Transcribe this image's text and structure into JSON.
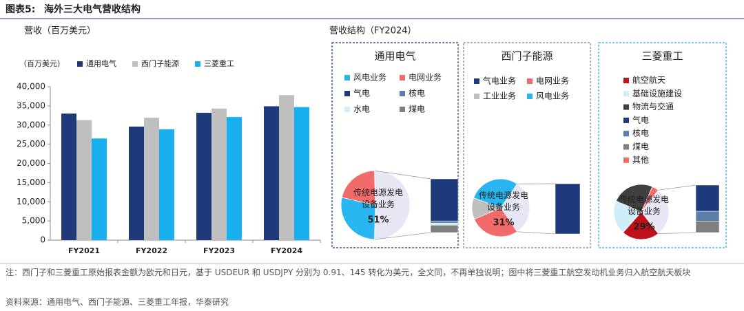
{
  "header": {
    "label": "图表5:",
    "title": "海外三大电气营收结构"
  },
  "section_title": "营收结构（FY2024）",
  "chart_data": [
    {
      "type": "bar",
      "title": "营收（百万美元）",
      "legend_unit": "（百万美元）",
      "legend": "top-left",
      "categories": [
        "FY2021",
        "FY2022",
        "FY2023",
        "FY2024"
      ],
      "series": [
        {
          "name": "通用电气",
          "color": "#1f3a7a",
          "values": [
            33000,
            29600,
            33200,
            34900
          ]
        },
        {
          "name": "西门子能源",
          "color": "#bfbfbf",
          "values": [
            31300,
            31900,
            34300,
            37800
          ]
        },
        {
          "name": "三菱重工",
          "color": "#1ab0f0",
          "values": [
            26500,
            28900,
            32100,
            34700
          ]
        }
      ],
      "ylim": [
        0,
        40000
      ],
      "yticks": [
        0,
        {
          "value": 5000,
          "label": "5,000"
        },
        {
          "value": 10000,
          "label": "10,000"
        },
        {
          "value": 15000,
          "label": "15,000"
        },
        {
          "value": 20000,
          "label": "20,000"
        },
        {
          "value": 25000,
          "label": "25,000"
        },
        {
          "value": 30000,
          "label": "30,000"
        },
        {
          "value": 35000,
          "label": "35,000"
        },
        {
          "value": 40000,
          "label": "40,000"
        }
      ]
    },
    {
      "type": "pie-of-bar",
      "title": "通用电气",
      "border_color": "#1f3a7a",
      "segments": [
        {
          "name": "风电业务",
          "color": "#29b6f0",
          "value": 28,
          "in": "pie"
        },
        {
          "name": "电网业务",
          "color": "#f26b6b",
          "value": 21,
          "in": "pie"
        },
        {
          "name": "气电",
          "color": "#1f3a7a",
          "value": 40,
          "in": "bar"
        },
        {
          "name": "核电",
          "color": "#5b7fa8",
          "value": 2,
          "in": "bar"
        },
        {
          "name": "水电",
          "color": "#cfeefa",
          "value": 2,
          "in": "bar"
        },
        {
          "name": "煤电",
          "color": "#7f7f7f",
          "value": 7,
          "in": "bar"
        }
      ],
      "detail": {
        "name": "传统电源发电设备业务",
        "value": 51,
        "value_label": "51%",
        "color": "#e6e6f5"
      }
    },
    {
      "type": "pie-of-bar",
      "title": "西门子能源",
      "border_color": "#808080",
      "segments": [
        {
          "name": "气电业务",
          "color": "#1f3a7a",
          "value": 31,
          "in": "bar"
        },
        {
          "name": "电网业务",
          "color": "#f26b6b",
          "value": 28,
          "in": "pie"
        },
        {
          "name": "工业业务",
          "color": "#bfbfbf",
          "value": 12,
          "in": "pie"
        },
        {
          "name": "风电业务",
          "color": "#29b6f0",
          "value": 29,
          "in": "pie"
        }
      ],
      "detail": {
        "name": "传统电源发电设备业务",
        "value": 31,
        "value_label": "31%",
        "color": "#e6e6f5"
      }
    },
    {
      "type": "pie-of-bar",
      "title": "三菱重工",
      "border_color": "#1ab0d8",
      "segments": [
        {
          "name": "航空航天",
          "color": "#c0101a",
          "value": 22,
          "in": "pie"
        },
        {
          "name": "基础设施建设",
          "color": "#cfeefa",
          "value": 20,
          "in": "pie"
        },
        {
          "name": "物流与交通",
          "color": "#404040",
          "value": 25,
          "in": "pie"
        },
        {
          "name": "气电",
          "color": "#1f3a7a",
          "value": 16,
          "in": "bar"
        },
        {
          "name": "核电",
          "color": "#5b7fa8",
          "value": 6,
          "in": "bar"
        },
        {
          "name": "煤电",
          "color": "#7f7f7f",
          "value": 7,
          "in": "bar"
        },
        {
          "name": "其他",
          "color": "#f26b6b",
          "value": 4,
          "in": "pie"
        }
      ],
      "detail": {
        "name": "传统电源发电设备业务",
        "value": 29,
        "value_label": "29%",
        "color": "#e6e6f5"
      }
    }
  ],
  "footer": {
    "note": "注：西门子和三菱重工原始报表金额为欧元和日元，基于 USDEUR 和 USDJPY 分别为 0.91、145 转化为美元，全文同，不再单独说明；图中将三菱重工航空发动机业务归入航空航天板块",
    "source": "资料来源：通用电气、西门子能源、三菱重工年报，华泰研究"
  }
}
